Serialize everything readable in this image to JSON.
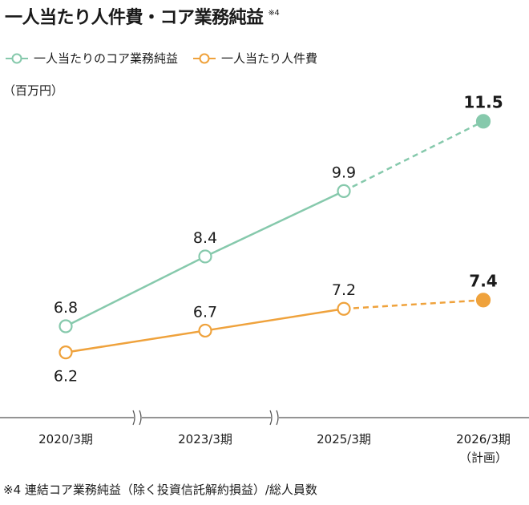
{
  "title": "一人当たり人件費・コア業務純益",
  "title_note": "※4",
  "unit_label": "（百万円）",
  "footnote": "※4 連結コア業務純益（除く投資信託解約損益）/総人員数",
  "colors": {
    "green": "#86c9ac",
    "orange": "#efa23c",
    "axis": "#555555"
  },
  "chart_data": {
    "type": "line",
    "categories": [
      "2020/3期",
      "2023/3期",
      "2025/3期",
      "2026/3期"
    ],
    "category_sublabels": [
      "",
      "",
      "",
      "（計画）"
    ],
    "series": [
      {
        "name": "一人当たりのコア業務純益",
        "values": [
          6.8,
          8.4,
          9.9,
          11.5
        ],
        "color": "#86c9ac",
        "planned_last": true
      },
      {
        "name": "一人当たり人件費",
        "values": [
          6.2,
          6.7,
          7.2,
          7.4
        ],
        "color": "#efa23c",
        "planned_last": true
      }
    ],
    "labels": [
      [
        "6.8",
        "8.4",
        "9.9",
        "11.5"
      ],
      [
        "6.2",
        "6.7",
        "7.2",
        "7.4"
      ]
    ],
    "axis_breaks": true,
    "grid": false,
    "legend_position": "top-left"
  }
}
